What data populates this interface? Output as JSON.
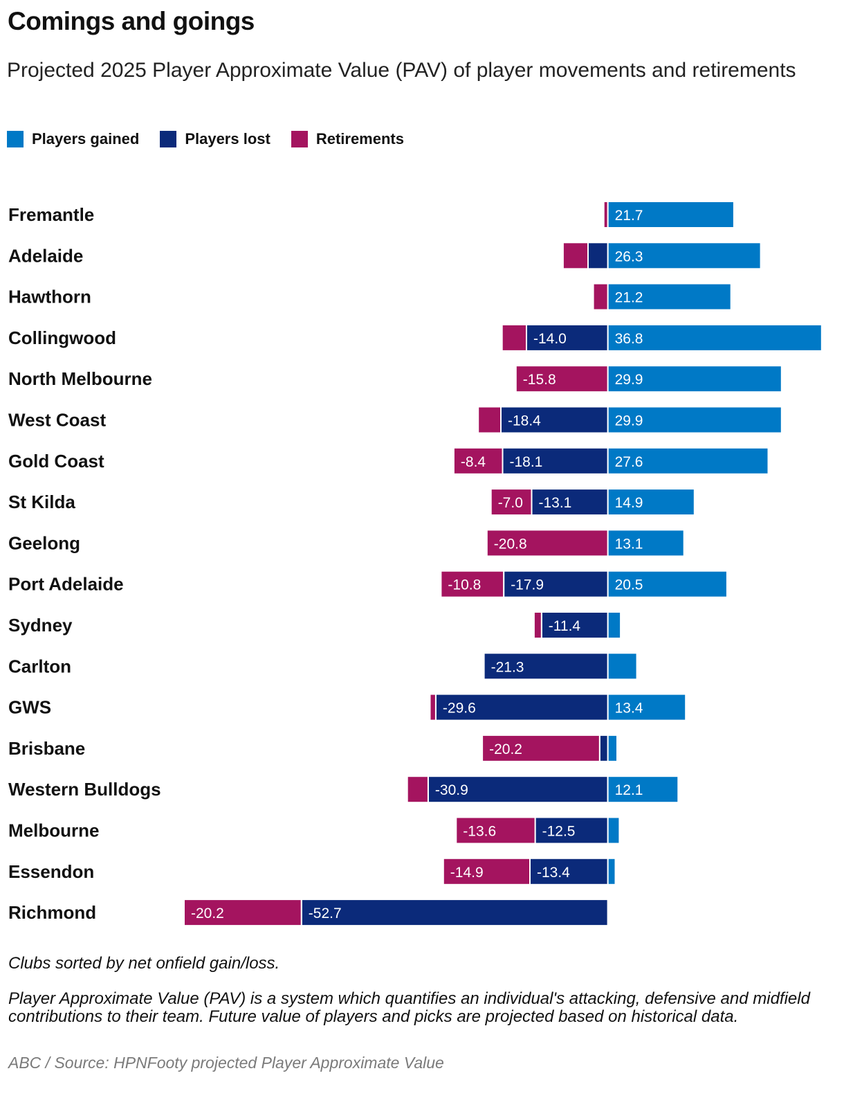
{
  "title": "Comings and goings",
  "subtitle": "Projected 2025 Player Approximate Value (PAV) of player movements and retirements",
  "legend": {
    "gained": "Players gained",
    "lost": "Players lost",
    "retirements": "Retirements"
  },
  "colors": {
    "gained": "#0079c6",
    "lost": "#0b2a7a",
    "retirements": "#a4145f"
  },
  "notes": {
    "sort_note": "Clubs sorted by net onfield gain/loss.",
    "pav_note": "Player Approximate Value (PAV) is a system which quantifies an individual's attacking, defensive and midfield contributions to their team. Future value of players and picks are projected based on historical data.",
    "source": "ABC / Source: HPNFooty projected Player Approximate Value"
  },
  "chart_data": {
    "type": "bar",
    "orientation": "horizontal-diverging-stacked",
    "title": "Comings and goings",
    "xlabel": "",
    "ylabel": "",
    "categories": [
      "Fremantle",
      "Adelaide",
      "Hawthorn",
      "Collingwood",
      "North Melbourne",
      "West Coast",
      "Gold Coast",
      "St Kilda",
      "Geelong",
      "Port Adelaide",
      "Sydney",
      "Carlton",
      "GWS",
      "Brisbane",
      "Western Bulldogs",
      "Melbourne",
      "Essendon",
      "Richmond"
    ],
    "series": [
      {
        "name": "Players gained",
        "key": "gained",
        "values": [
          21.7,
          26.3,
          21.2,
          36.8,
          29.9,
          29.9,
          27.6,
          14.9,
          13.1,
          20.5,
          2.2,
          5.0,
          13.4,
          1.6,
          12.1,
          2.0,
          1.3,
          0
        ]
      },
      {
        "name": "Players lost",
        "key": "lost",
        "values": [
          0,
          -3.4,
          0,
          -14.0,
          0,
          -18.4,
          -18.1,
          -13.1,
          0,
          -17.9,
          -11.4,
          -21.3,
          -29.6,
          -1.4,
          -30.9,
          -12.5,
          -13.4,
          -52.7
        ]
      },
      {
        "name": "Retirements",
        "key": "retirements",
        "values": [
          -0.7,
          -4.3,
          -2.5,
          -4.2,
          -15.8,
          -3.9,
          -8.4,
          -7.0,
          -20.8,
          -10.8,
          -1.3,
          0,
          -1.0,
          -20.2,
          -3.6,
          -13.6,
          -14.9,
          -20.2
        ]
      }
    ],
    "labels": {
      "gained": [
        "21.7",
        "26.3",
        "21.2",
        "36.8",
        "29.9",
        "29.9",
        "27.6",
        "14.9",
        "13.1",
        "20.5",
        "",
        "",
        "13.4",
        "",
        "12.1",
        "",
        "",
        ""
      ],
      "lost": [
        "",
        "",
        "",
        "-14.0",
        "",
        "-18.4",
        "-18.1",
        "-13.1",
        "",
        "-17.9",
        "-11.4",
        "-21.3",
        "-29.6",
        "",
        "-30.9",
        "-12.5",
        "-13.4",
        "-52.7"
      ],
      "retirements": [
        "",
        "",
        "",
        "",
        "-15.8",
        "",
        "-8.4",
        "-7.0",
        "-20.8",
        "-10.8",
        "",
        "",
        "",
        "-20.2",
        "",
        "-13.6",
        "-14.9",
        "-20.2"
      ]
    },
    "xlim": [
      -73.5,
      37.3
    ],
    "grid": false,
    "legend_position": "top-left"
  }
}
